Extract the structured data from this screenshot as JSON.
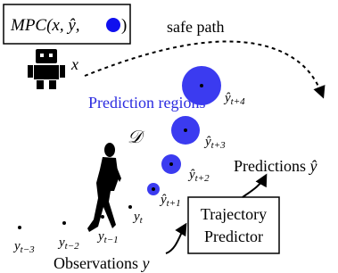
{
  "mpc_box": {
    "open": "MPC(x, ŷ,",
    "close": ")"
  },
  "safe_path": "safe path",
  "robot_label": "x",
  "prediction_regions": "Prediction regions",
  "dataset_label": "𝒟",
  "current": {
    "base": "y",
    "sub": "t"
  },
  "predictions": [
    {
      "base": "ŷ",
      "sub": "t+1"
    },
    {
      "base": "ŷ",
      "sub": "t+2"
    },
    {
      "base": "ŷ",
      "sub": "t+3"
    },
    {
      "base": "ŷ",
      "sub": "t+4"
    }
  ],
  "observations": [
    {
      "base": "y",
      "sub": "t−3"
    },
    {
      "base": "y",
      "sub": "t−2"
    },
    {
      "base": "y",
      "sub": "t−1"
    }
  ],
  "observations_label": {
    "text": "Observations",
    "symbol": "y"
  },
  "predictions_label": {
    "text": "Predictions",
    "symbol": "ŷ"
  },
  "predictor": {
    "lines": [
      "Trajectory",
      "Predictor"
    ]
  }
}
